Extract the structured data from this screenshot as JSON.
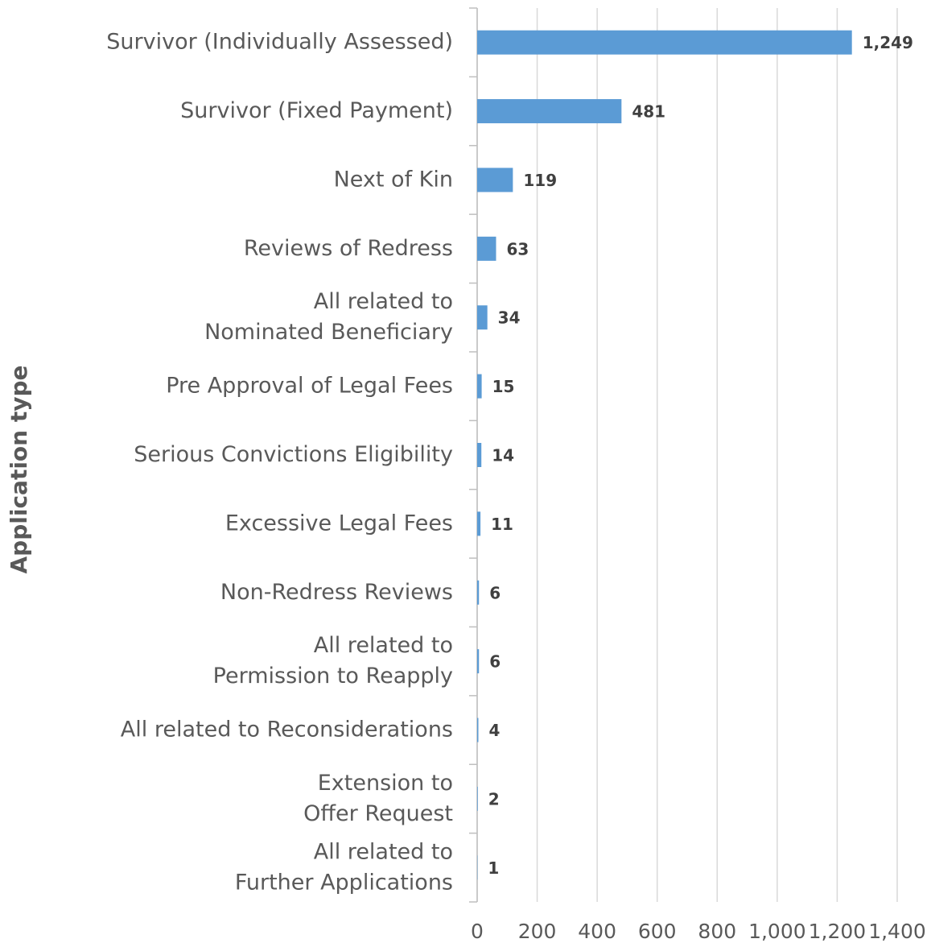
{
  "chart_data": {
    "type": "bar",
    "orientation": "horizontal",
    "y_axis_label": "Application type",
    "categories": [
      "Survivor (Individually Assessed)",
      "Survivor (Fixed Payment)",
      "Next of Kin",
      "Reviews of Redress",
      "All related to\nNominated Beneficiary",
      "Pre Approval of Legal Fees",
      "Serious Convictions Eligibility",
      "Excessive Legal Fees",
      "Non-Redress Reviews",
      "All related to\nPermission to Reapply",
      "All related to Reconsiderations",
      "Extension to\nOffer Request",
      "All related to\nFurther Applications"
    ],
    "values": [
      1249,
      481,
      119,
      63,
      34,
      15,
      14,
      11,
      6,
      6,
      4,
      2,
      1
    ],
    "value_labels": [
      "1,249",
      "481",
      "119",
      "63",
      "34",
      "15",
      "14",
      "11",
      "6",
      "6",
      "4",
      "2",
      "1"
    ],
    "color": "#5b9bd5",
    "xlim": [
      0,
      1400
    ],
    "xticks": [
      0,
      200,
      400,
      600,
      800,
      {
        "value": 1000,
        "label": "1,000"
      },
      {
        "value": 1200,
        "label": "1,200"
      },
      {
        "value": 1400,
        "label": "1,400"
      }
    ],
    "grid": true
  }
}
